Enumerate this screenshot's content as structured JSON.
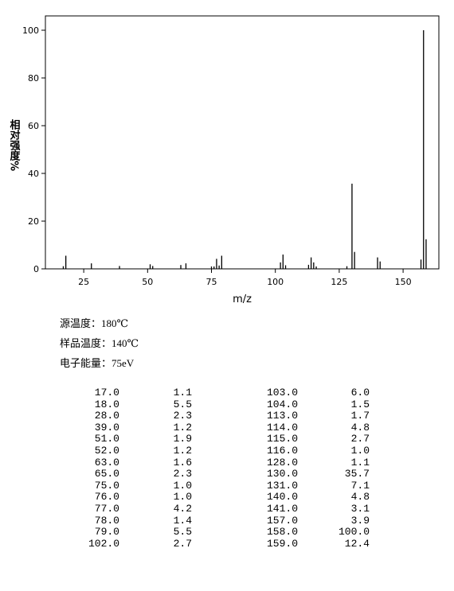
{
  "chart_data": {
    "type": "bar",
    "xlabel": "m/z",
    "ylabel": "相对强度%",
    "x": [
      17,
      18,
      28,
      39,
      51,
      52,
      63,
      65,
      75,
      76,
      77,
      78,
      79,
      102,
      103,
      104,
      113,
      114,
      115,
      116,
      128,
      130,
      131,
      140,
      141,
      157,
      158,
      159
    ],
    "values": [
      1.1,
      5.5,
      2.3,
      1.2,
      1.9,
      1.2,
      1.6,
      2.3,
      1.0,
      1.0,
      4.2,
      1.4,
      5.5,
      2.7,
      6.0,
      1.5,
      1.7,
      4.8,
      2.7,
      1.0,
      1.1,
      35.7,
      7.1,
      4.8,
      3.1,
      3.9,
      100.0,
      12.4
    ],
    "color": "#000000",
    "xlim": [
      10,
      164
    ],
    "xticks": [
      25,
      50,
      75,
      100,
      125,
      150
    ],
    "ylim": [
      0,
      106
    ],
    "yticks": [
      0,
      20,
      40,
      60,
      80,
      100
    ]
  },
  "conditions": [
    "源温度：180℃",
    "样品温度：140℃",
    "电子能量：75eV"
  ],
  "peak_table": {
    "rows": [
      [
        "17.0",
        "1.1",
        "103.0",
        "6.0"
      ],
      [
        "18.0",
        "5.5",
        "104.0",
        "1.5"
      ],
      [
        "28.0",
        "2.3",
        "113.0",
        "1.7"
      ],
      [
        "39.0",
        "1.2",
        "114.0",
        "4.8"
      ],
      [
        "51.0",
        "1.9",
        "115.0",
        "2.7"
      ],
      [
        "52.0",
        "1.2",
        "116.0",
        "1.0"
      ],
      [
        "63.0",
        "1.6",
        "128.0",
        "1.1"
      ],
      [
        "65.0",
        "2.3",
        "130.0",
        "35.7"
      ],
      [
        "75.0",
        "1.0",
        "131.0",
        "7.1"
      ],
      [
        "76.0",
        "1.0",
        "140.0",
        "4.8"
      ],
      [
        "77.0",
        "4.2",
        "141.0",
        "3.1"
      ],
      [
        "78.0",
        "1.4",
        "157.0",
        "3.9"
      ],
      [
        "79.0",
        "5.5",
        "158.0",
        "100.0"
      ],
      [
        "102.0",
        "2.7",
        "159.0",
        "12.4"
      ]
    ]
  }
}
